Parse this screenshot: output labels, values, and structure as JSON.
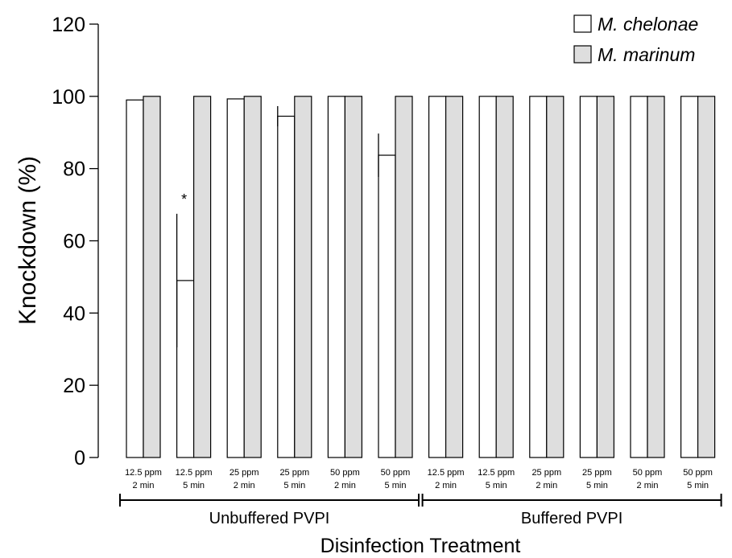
{
  "chart_data": {
    "type": "bar",
    "ylabel": "Knockdown (%)",
    "xlabel": "Disinfection Treatment",
    "ylim": [
      0,
      120
    ],
    "yticks": [
      0,
      20,
      40,
      60,
      80,
      100,
      120
    ],
    "grid": false,
    "legend_position": "top-right",
    "categories": [
      [
        "12.5 ppm",
        "2 min"
      ],
      [
        "12.5 ppm",
        "5 min"
      ],
      [
        "25 ppm",
        "2 min"
      ],
      [
        "25 ppm",
        "5 min"
      ],
      [
        "50 ppm",
        "2 min"
      ],
      [
        "50 ppm",
        "5 min"
      ],
      [
        "12.5 ppm",
        "2 min"
      ],
      [
        "12.5 ppm",
        "5 min"
      ],
      [
        "25 ppm",
        "2 min"
      ],
      [
        "25 ppm",
        "5 min"
      ],
      [
        "50 ppm",
        "2 min"
      ],
      [
        "50 ppm",
        "5 min"
      ]
    ],
    "groups": [
      {
        "label": "Unbuffered PVPI",
        "from": 0,
        "to": 5
      },
      {
        "label": "Buffered PVPI",
        "from": 6,
        "to": 11
      }
    ],
    "series": [
      {
        "name": "M. chelonae",
        "color": "#ffffff",
        "values": [
          99,
          49,
          99.3,
          94.5,
          100,
          83.7,
          100,
          100,
          100,
          100,
          100,
          100
        ],
        "errors": [
          0,
          18.5,
          0,
          2.8,
          0,
          6,
          0,
          0,
          0,
          0,
          0,
          0
        ]
      },
      {
        "name": "M. marinum",
        "color": "#dedede",
        "values": [
          100,
          100,
          100,
          100,
          100,
          100,
          100,
          100,
          100,
          100,
          100,
          100
        ],
        "errors": [
          0,
          0,
          0,
          0,
          0,
          0,
          0,
          0,
          0,
          0,
          0,
          0
        ]
      }
    ],
    "annotations": [
      {
        "text": "*",
        "category_index": 1,
        "series_index": 0
      }
    ]
  }
}
